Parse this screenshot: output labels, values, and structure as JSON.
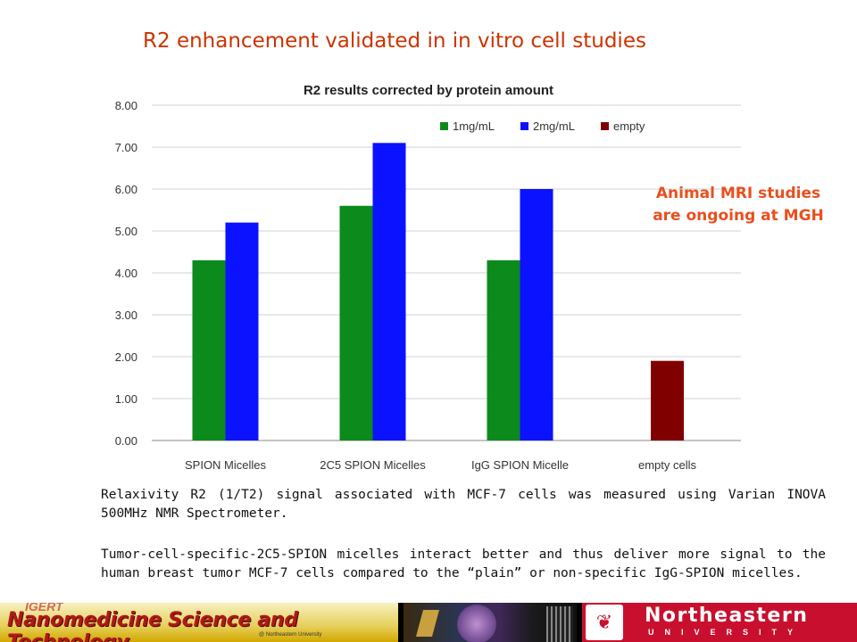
{
  "slide": {
    "title": "R2 enhancement validated in in vitro cell studies",
    "side_note": "Animal MRI studies are ongoing at MGH",
    "caption_1": "Relaxivity R2 (1/T2) signal associated with MCF-7 cells was measured using Varian INOVA 500MHz NMR Spectrometer.",
    "caption_2": "Tumor-cell-specific-2C5-SPION micelles interact better and thus deliver more signal to the human breast tumor MCF-7 cells compared to the “plain” or non-specific IgG-SPION micelles."
  },
  "footer": {
    "left_logo_text": "Nanomedicine Science and Technology",
    "left_logo_overlay": "IGERT",
    "left_logo_sub": "@ Northeastern University",
    "right_logo_name": "Northeastern",
    "right_logo_sub": "UNIVERSITY",
    "seal_icon": "northeastern-seal-icon"
  },
  "chart_data": {
    "type": "bar",
    "title": "R2 results corrected by protein amount",
    "categories": [
      "SPION Micelles",
      "2C5 SPION Micelles",
      "IgG SPION Micelle",
      "empty cells"
    ],
    "series": [
      {
        "name": "1mg/mL",
        "color": "#0d8a1c",
        "values": [
          4.3,
          5.6,
          4.3,
          null
        ]
      },
      {
        "name": "2mg/mL",
        "color": "#0a12ff",
        "values": [
          5.2,
          7.1,
          6.0,
          null
        ]
      },
      {
        "name": "empty",
        "color": "#800000",
        "values": [
          null,
          null,
          null,
          1.9
        ]
      }
    ],
    "yticks": [
      "0.00",
      "1.00",
      "2.00",
      "3.00",
      "4.00",
      "5.00",
      "6.00",
      "7.00",
      "8.00"
    ],
    "ylim": [
      0,
      8
    ],
    "grid": true,
    "legend_position": "top-right"
  }
}
